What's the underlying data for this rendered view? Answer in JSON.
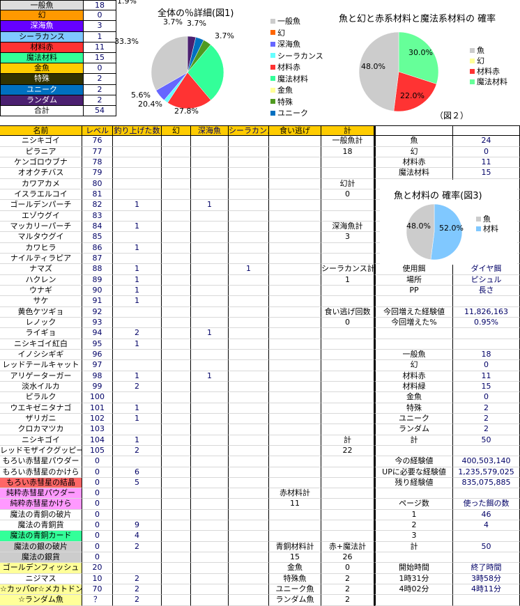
{
  "summary": [
    {
      "label": "一般魚",
      "value": "18",
      "bg": "#dddddd",
      "fg": "#000000"
    },
    {
      "label": "幻",
      "value": "0",
      "bg": "#ff9900",
      "fg": "#000000"
    },
    {
      "label": "深海魚",
      "value": "3",
      "bg": "#6600ff",
      "fg": "#ffffff"
    },
    {
      "label": "シーラカンス",
      "value": "1",
      "bg": "#80c8ff",
      "fg": "#000000"
    },
    {
      "label": "材料赤",
      "value": "11",
      "bg": "#ff3333",
      "fg": "#000000"
    },
    {
      "label": "魔法材料",
      "value": "15",
      "bg": "#33ff99",
      "fg": "#000000"
    },
    {
      "label": "金魚",
      "value": "0",
      "bg": "#ffcc00",
      "fg": "#000000"
    },
    {
      "label": "特殊",
      "value": "2",
      "bg": "#333300",
      "fg": "#ffffff"
    },
    {
      "label": "ユニーク",
      "value": "2",
      "bg": "#0070c0",
      "fg": "#ffffff"
    },
    {
      "label": "ランダム",
      "value": "2",
      "bg": "#4b2070",
      "fg": "#ffffff"
    },
    {
      "label": "合計",
      "value": "54",
      "bg": "#ffffff",
      "fg": "#000000"
    }
  ],
  "main": {
    "header_bg": "#ffcc00",
    "rows": [
      {
        "c": [
          "名前",
          "レベル",
          "釣り上げた数",
          "幻",
          "深海魚",
          "シーラカンス",
          "食い逃げ",
          "計",
          "",
          ""
        ]
      },
      {
        "c": [
          "ニシキゴイ",
          "76",
          "",
          "",
          "",
          "",
          "",
          "一般魚計",
          "魚",
          "24"
        ]
      },
      {
        "c": [
          "ピラニア",
          "77",
          "",
          "",
          "",
          "",
          "",
          "18",
          "幻",
          "0"
        ]
      },
      {
        "c": [
          "ケンゴロウブナ",
          "78",
          "",
          "",
          "",
          "",
          "",
          "",
          "材料赤",
          "11"
        ]
      },
      {
        "c": [
          "オオクチバス",
          "79",
          "",
          "",
          "",
          "",
          "",
          "",
          "魔法材料",
          "15"
        ]
      },
      {
        "c": [
          "カワアカメ",
          "80",
          "",
          "",
          "",
          "",
          "",
          "幻計",
          "",
          ""
        ]
      },
      {
        "c": [
          "イスラエルコイ",
          "81",
          "",
          "",
          "",
          "",
          "",
          "0",
          "",
          ""
        ]
      },
      {
        "c": [
          "ゴールデンパーチ",
          "82",
          "1",
          "",
          "1",
          "",
          "",
          "",
          "",
          ""
        ]
      },
      {
        "c": [
          "エゾウグイ",
          "83",
          "",
          "",
          "",
          "",
          "",
          "",
          "",
          ""
        ]
      },
      {
        "c": [
          "マッカリーパーチ",
          "84",
          "1",
          "",
          "",
          "",
          "",
          "深海魚計",
          "",
          ""
        ]
      },
      {
        "c": [
          "マルタウグイ",
          "85",
          "",
          "",
          "",
          "",
          "",
          "3",
          "",
          ""
        ]
      },
      {
        "c": [
          "カワヒラ",
          "86",
          "1",
          "",
          "",
          "",
          "",
          "",
          "",
          ""
        ]
      },
      {
        "c": [
          "ナイルティラピア",
          "87",
          "",
          "",
          "",
          "",
          "",
          "",
          "",
          ""
        ]
      },
      {
        "c": [
          "ナマズ",
          "88",
          "1",
          "",
          "",
          "1",
          "",
          "シーラカンス計",
          "使用餌",
          "ダイヤ餌"
        ]
      },
      {
        "c": [
          "ハクレン",
          "89",
          "1",
          "",
          "",
          "",
          "",
          "1",
          "場所",
          "ピシュル"
        ]
      },
      {
        "c": [
          "ウナギ",
          "90",
          "1",
          "",
          "",
          "",
          "",
          "",
          "PP",
          "長さ"
        ]
      },
      {
        "c": [
          "サケ",
          "91",
          "1",
          "",
          "",
          "",
          "",
          "",
          "",
          ""
        ]
      },
      {
        "c": [
          "黄色ケツギョ",
          "92",
          "",
          "",
          "",
          "",
          "",
          "食い逃げ回数",
          "今回増えた経験値",
          "11,826,163"
        ]
      },
      {
        "c": [
          "レノック",
          "93",
          "",
          "",
          "",
          "",
          "",
          "0",
          "今回増えた%",
          "0.95%"
        ]
      },
      {
        "c": [
          "ライギョ",
          "94",
          "2",
          "",
          "1",
          "",
          "",
          "",
          "",
          ""
        ]
      },
      {
        "c": [
          "ニシキゴイ紅白",
          "95",
          "1",
          "",
          "",
          "",
          "",
          "",
          "",
          ""
        ]
      },
      {
        "c": [
          "イノシシギギ",
          "96",
          "",
          "",
          "",
          "",
          "",
          "",
          "一般魚",
          "18"
        ]
      },
      {
        "c": [
          "レッドテールキャット",
          "97",
          "",
          "",
          "",
          "",
          "",
          "",
          "幻",
          "0"
        ]
      },
      {
        "c": [
          "アリゲーターガー",
          "98",
          "1",
          "",
          "1",
          "",
          "",
          "",
          "材料赤",
          "11"
        ]
      },
      {
        "c": [
          "淡水イルカ",
          "99",
          "2",
          "",
          "",
          "",
          "",
          "",
          "材料緑",
          "15"
        ]
      },
      {
        "c": [
          "ピラルク",
          "100",
          "",
          "",
          "",
          "",
          "",
          "",
          "金魚",
          "0"
        ]
      },
      {
        "c": [
          "ウエキゼニタナゴ",
          "101",
          "1",
          "",
          "",
          "",
          "",
          "",
          "特殊",
          "2"
        ]
      },
      {
        "c": [
          "ザリガニ",
          "102",
          "1",
          "",
          "",
          "",
          "",
          "",
          "ユニーク",
          "2"
        ]
      },
      {
        "c": [
          "クロカマツカ",
          "103",
          "",
          "",
          "",
          "",
          "",
          "",
          "ランダム",
          "2"
        ]
      },
      {
        "c": [
          "ニシキゴイ",
          "104",
          "1",
          "",
          "",
          "",
          "",
          "計",
          "計",
          "50"
        ]
      },
      {
        "c": [
          "レッドモザイクグッピー",
          "105",
          "2",
          "",
          "",
          "",
          "",
          "22",
          "",
          ""
        ]
      },
      {
        "c": [
          "もろい赤彗星パウダー",
          "0",
          "",
          "",
          "",
          "",
          "",
          "",
          "今の経験値",
          "400,503,140"
        ]
      },
      {
        "c": [
          "もろい赤彗星のかけら",
          "0",
          "6",
          "",
          "",
          "",
          "",
          "",
          "UPに必要な経験値",
          "1,235,579,025"
        ]
      },
      {
        "c": [
          "もろい赤彗星の結晶",
          "0",
          "5",
          "",
          "",
          "",
          "",
          "",
          "残り経験値",
          "835,075,885"
        ],
        "bg": "#ff6666"
      },
      {
        "c": [
          "純粋赤彗星パウダー",
          "0",
          "",
          "",
          "",
          "",
          "赤材料計",
          "",
          "",
          ""
        ],
        "bg": "#ff99ff"
      },
      {
        "c": [
          "純粋赤彗星かけら",
          "0",
          "",
          "",
          "",
          "",
          "11",
          "",
          "ページ数",
          "使った餌の数"
        ],
        "bg": "#ff99ff"
      },
      {
        "c": [
          "魔法の青銅の破片",
          "0",
          "",
          "",
          "",
          "",
          "",
          "",
          "1",
          "46"
        ]
      },
      {
        "c": [
          "魔法の青銅貨",
          "0",
          "9",
          "",
          "",
          "",
          "",
          "",
          "2",
          "4"
        ]
      },
      {
        "c": [
          "魔法の青銅カード",
          "0",
          "4",
          "",
          "",
          "",
          "",
          "",
          "3",
          ""
        ],
        "bg": "#33ff99"
      },
      {
        "c": [
          "魔法の銀の破片",
          "0",
          "2",
          "",
          "",
          "",
          "青銅材料計",
          "赤+魔法計",
          "計",
          "50"
        ],
        "bg": "#cccccc"
      },
      {
        "c": [
          "魔法の銀貨",
          "0",
          "",
          "",
          "",
          "",
          "15",
          "26",
          "",
          ""
        ],
        "bg": "#cccccc"
      },
      {
        "c": [
          "ゴールデンフィッシュ",
          "20",
          "",
          "",
          "",
          "",
          "金魚",
          "0",
          "開始時間",
          "終了時間"
        ],
        "bg": "#ffff99"
      },
      {
        "c": [
          "ニジマス",
          "10",
          "2",
          "",
          "",
          "",
          "特殊魚",
          "2",
          "1時31分",
          "3時58分"
        ]
      },
      {
        "c": [
          "☆カッパor☆メカトドン",
          "70",
          "2",
          "",
          "",
          "",
          "ユニーク魚",
          "2",
          "4時02分",
          "4時11分"
        ],
        "bg": "#ffff99"
      },
      {
        "c": [
          "☆ランダム魚",
          "？",
          "2",
          "",
          "",
          "",
          "ランダム魚",
          "2",
          "",
          ""
        ],
        "bg": "#ffff99"
      }
    ]
  },
  "chart_data": [
    {
      "type": "pie",
      "title": "全体の％詳細(図1)",
      "legend": [
        "一般魚",
        "幻",
        "深海魚",
        "シーラカンス",
        "材料赤",
        "魔法材料",
        "金魚",
        "特殊",
        "ユニーク"
      ],
      "slices": [
        {
          "name": "ランダム",
          "value": 3.7,
          "label": "3.7%",
          "color": "#4b2070"
        },
        {
          "name": "ユニーク",
          "value": 3.7,
          "label": "3.7%",
          "color": "#0070c0"
        },
        {
          "name": "特殊",
          "value": 3.7,
          "label": "3.7%",
          "color": "#4f9a20"
        },
        {
          "name": "金魚",
          "value": 0,
          "label": "",
          "color": "#ffff99"
        },
        {
          "name": "魔法材料",
          "value": 27.8,
          "label": "27.8%",
          "color": "#33ff99"
        },
        {
          "name": "材料赤",
          "value": 20.4,
          "label": "20.4%",
          "color": "#ff3333"
        },
        {
          "name": "シーラカンス",
          "value": 1.9,
          "label": "1.9%",
          "color": "#66ffff"
        },
        {
          "name": "深海魚",
          "value": 5.6,
          "label": "5.6%",
          "color": "#6666ff"
        },
        {
          "name": "幻",
          "value": 0,
          "label": "",
          "color": "#ff6600"
        },
        {
          "name": "一般魚",
          "value": 33.3,
          "label": "33.3%",
          "color": "#cccccc"
        }
      ],
      "legend_colors": [
        "#cccccc",
        "#ff6600",
        "#6666ff",
        "#66ffff",
        "#ff3333",
        "#33ff99",
        "#ffff99",
        "#4f9a20",
        "#0070c0"
      ]
    },
    {
      "type": "pie",
      "title": "魚と幻と赤系材料と魔法系材料の 確率",
      "caption": "（図２）",
      "legend": [
        "魚",
        "幻",
        "材料赤",
        "魔法材料"
      ],
      "legend_colors": [
        "#cccccc",
        "#ffff99",
        "#ff3333",
        "#66ff99"
      ],
      "slices": [
        {
          "name": "魔法材料",
          "value": 30.0,
          "label": "30.0%",
          "color": "#66ff99"
        },
        {
          "name": "材料赤",
          "value": 22.0,
          "label": "22.0%",
          "color": "#ff3333"
        },
        {
          "name": "魚",
          "value": 48.0,
          "label": "48.0%",
          "color": "#cccccc"
        }
      ]
    },
    {
      "type": "pie",
      "title": "魚と材料の 確率(図3)",
      "legend": [
        "魚",
        "材料"
      ],
      "legend_colors": [
        "#cccccc",
        "#80c8ff"
      ],
      "slices": [
        {
          "name": "材料",
          "value": 52.0,
          "label": "52.0%",
          "color": "#80c8ff"
        },
        {
          "name": "魚",
          "value": 48.0,
          "label": "48.0%",
          "color": "#cccccc"
        }
      ]
    }
  ]
}
